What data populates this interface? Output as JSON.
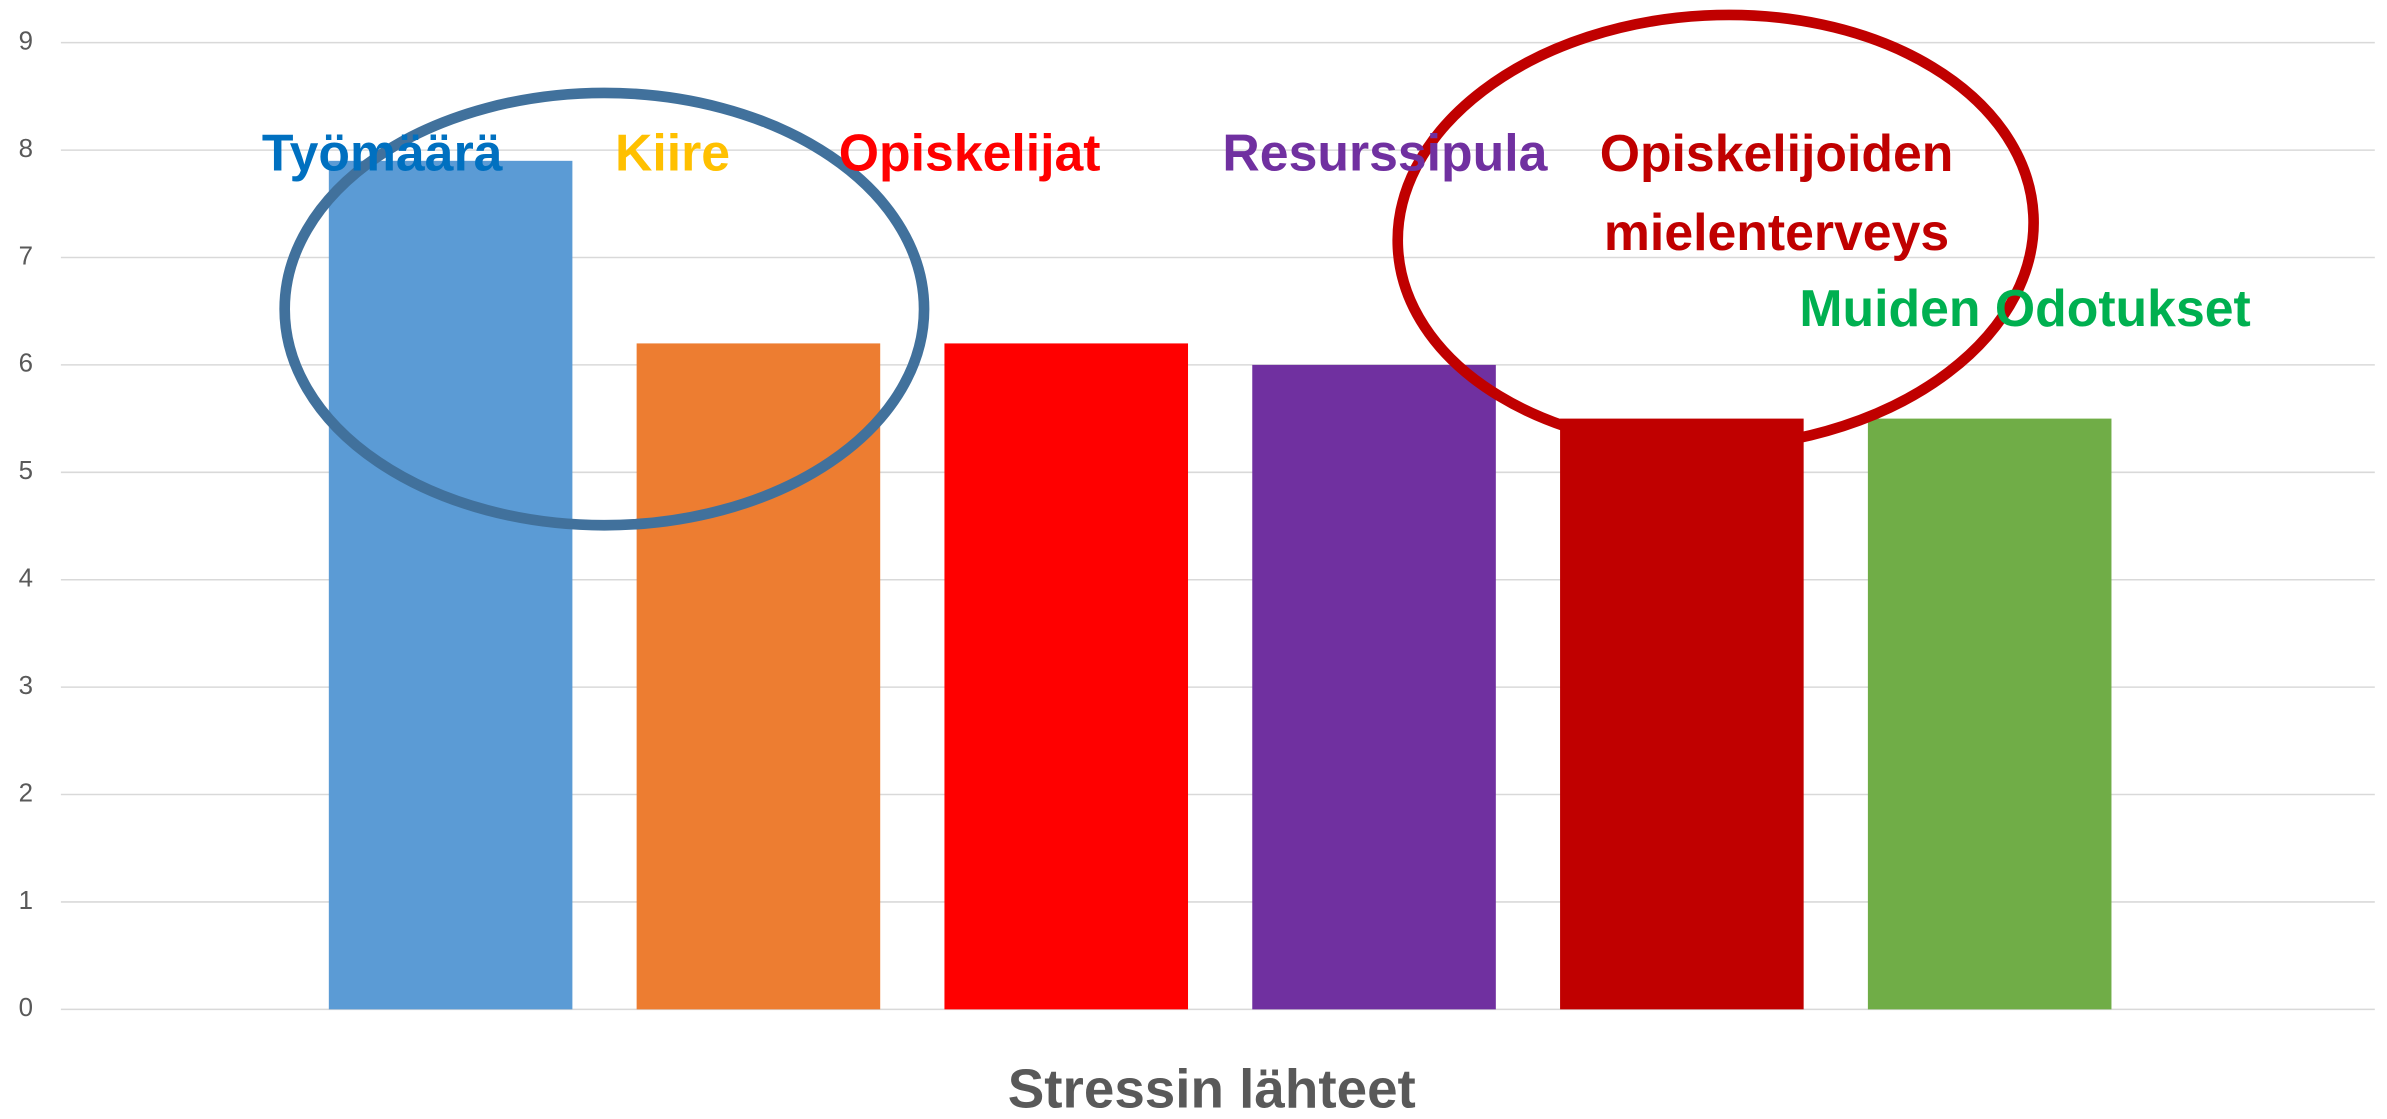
{
  "chart_data": {
    "type": "bar",
    "x_label": "Stressin lähteet",
    "categories": [
      "Työmäärä",
      "Kiire",
      "Opiskelijat",
      "Resurssipula",
      "Opiskelijoiden mielenterveys",
      "Muiden Odotukset"
    ],
    "values": [
      7.9,
      6.2,
      6.2,
      6.0,
      5.5,
      5.5
    ],
    "colors": [
      "#5b9bd5",
      "#ed7d31",
      "#ff0000",
      "#7030a0",
      "#c00000",
      "#70ad47"
    ],
    "label_colors": [
      "#0070c0",
      "#ffc000",
      "#ff0000",
      "#7030a0",
      "#c00000",
      "#00b050"
    ],
    "ylim": [
      0,
      9
    ],
    "yticks": [
      0,
      1,
      2,
      3,
      4,
      5,
      6,
      7,
      8,
      9
    ],
    "grid": true
  }
}
